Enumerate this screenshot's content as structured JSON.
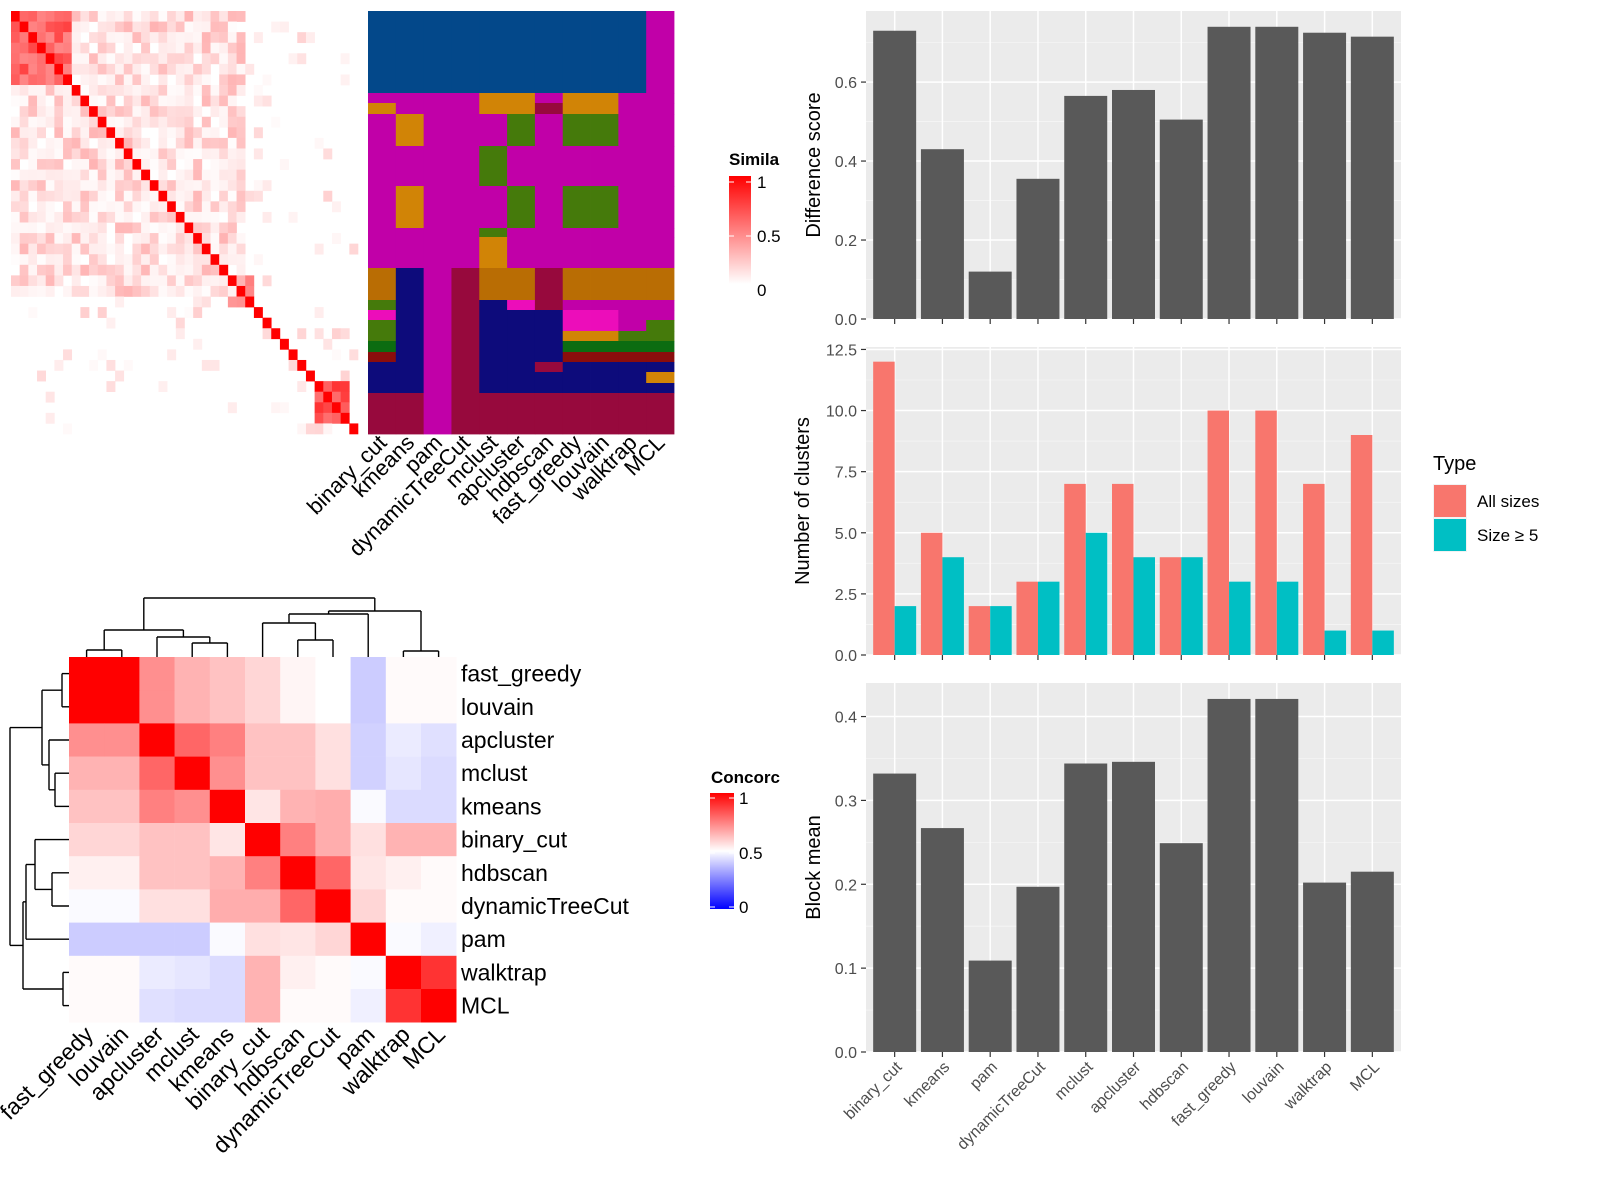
{
  "chart_data": [
    {
      "type": "heatmap",
      "panel": "similarity-heatmap",
      "legend": {
        "title": "Simila",
        "ticks": [
          "1",
          "0.5",
          "0"
        ],
        "range": [
          0,
          1
        ]
      },
      "n": 40,
      "note_values": "diagonal 1, warm block top-left, blocks at bottom-right"
    },
    {
      "type": "heatmap",
      "panel": "cluster-assignment-heatmap",
      "columns": [
        "binary_cut",
        "kmeans",
        "pam",
        "dynamicTreeCut",
        "mclust",
        "apcluster",
        "hdbscan",
        "fast_greedy",
        "louvain",
        "walktrap",
        "MCL"
      ],
      "palette": {
        "blue": "#03488a",
        "magenta": "#c100a8",
        "orange": "#d18406",
        "green": "#457a0b",
        "navy": "#0d0b7b",
        "maroon": "#97093d",
        "brown": "#b96d04",
        "pink": "#ec0dba",
        "darkgreen": "#0c6c11",
        "darkred": "#8a0d0c"
      }
    },
    {
      "type": "heatmap",
      "panel": "concordance-heatmap",
      "rows": [
        "fast_greedy",
        "louvain",
        "apcluster",
        "mclust",
        "kmeans",
        "binary_cut",
        "hdbscan",
        "dynamicTreeCut",
        "pam",
        "walktrap",
        "MCL"
      ],
      "cols": [
        "fast_greedy",
        "louvain",
        "apcluster",
        "mclust",
        "kmeans",
        "binary_cut",
        "hdbscan",
        "dynamicTreeCut",
        "pam",
        "walktrap",
        "MCL"
      ],
      "legend": {
        "title": "Concorc",
        "ticks": [
          "1",
          "0.5",
          "0"
        ],
        "range": [
          0,
          1
        ]
      },
      "values": [
        [
          1.0,
          1.0,
          0.72,
          0.65,
          0.62,
          0.58,
          0.52,
          0.5,
          0.4,
          0.51,
          0.51
        ],
        [
          1.0,
          1.0,
          0.72,
          0.65,
          0.62,
          0.58,
          0.52,
          0.5,
          0.4,
          0.51,
          0.51
        ],
        [
          0.72,
          0.72,
          1.0,
          0.8,
          0.75,
          0.62,
          0.62,
          0.56,
          0.41,
          0.46,
          0.44
        ],
        [
          0.65,
          0.65,
          0.8,
          1.0,
          0.72,
          0.62,
          0.62,
          0.56,
          0.41,
          0.45,
          0.43
        ],
        [
          0.62,
          0.62,
          0.75,
          0.72,
          1.0,
          0.55,
          0.65,
          0.66,
          0.49,
          0.43,
          0.43
        ],
        [
          0.58,
          0.58,
          0.62,
          0.62,
          0.55,
          1.0,
          0.75,
          0.66,
          0.56,
          0.65,
          0.65
        ],
        [
          0.53,
          0.53,
          0.62,
          0.62,
          0.65,
          0.75,
          1.0,
          0.8,
          0.55,
          0.53,
          0.51
        ],
        [
          0.49,
          0.49,
          0.56,
          0.56,
          0.66,
          0.66,
          0.8,
          1.0,
          0.58,
          0.51,
          0.51
        ],
        [
          0.4,
          0.4,
          0.4,
          0.4,
          0.49,
          0.56,
          0.55,
          0.58,
          1.0,
          0.49,
          0.47
        ],
        [
          0.51,
          0.51,
          0.46,
          0.45,
          0.43,
          0.65,
          0.53,
          0.51,
          0.49,
          1.0,
          0.9
        ],
        [
          0.51,
          0.51,
          0.44,
          0.43,
          0.43,
          0.65,
          0.51,
          0.51,
          0.47,
          0.9,
          1.0
        ]
      ]
    },
    {
      "type": "bar",
      "panel": "difference-score",
      "categories": [
        "binary_cut",
        "kmeans",
        "pam",
        "dynamicTreeCut",
        "mclust",
        "apcluster",
        "hdbscan",
        "fast_greedy",
        "louvain",
        "walktrap",
        "MCL"
      ],
      "values": [
        0.73,
        0.43,
        0.12,
        0.355,
        0.565,
        0.58,
        0.505,
        0.74,
        0.74,
        0.725,
        0.715
      ],
      "ylabel": "Difference score",
      "yticks": [
        "0.0",
        "0.2",
        "0.4",
        "0.6"
      ],
      "ylim": [
        0,
        0.78
      ],
      "color": "#595959"
    },
    {
      "type": "bar",
      "panel": "number-of-clusters",
      "categories": [
        "binary_cut",
        "kmeans",
        "pam",
        "dynamicTreeCut",
        "mclust",
        "apcluster",
        "hdbscan",
        "fast_greedy",
        "louvain",
        "walktrap",
        "MCL"
      ],
      "series": [
        {
          "name": "All sizes",
          "color": "#f8766d",
          "values": [
            12,
            5,
            2,
            3,
            7,
            7,
            4,
            10,
            10,
            7,
            9
          ]
        },
        {
          "name": "Size ≥ 5",
          "color": "#00bfc4",
          "values": [
            2,
            4,
            2,
            3,
            5,
            4,
            4,
            3,
            3,
            1,
            1
          ]
        }
      ],
      "ylabel": "Number of clusters",
      "yticks": [
        "0.0",
        "2.5",
        "5.0",
        "7.5",
        "10.0",
        "12.5"
      ],
      "ylim": [
        0,
        12.6
      ],
      "legend": {
        "title": "Type",
        "placement": "right"
      }
    },
    {
      "type": "bar",
      "panel": "block-mean",
      "categories": [
        "binary_cut",
        "kmeans",
        "pam",
        "dynamicTreeCut",
        "mclust",
        "apcluster",
        "hdbscan",
        "fast_greedy",
        "louvain",
        "walktrap",
        "MCL"
      ],
      "values": [
        0.332,
        0.267,
        0.109,
        0.197,
        0.344,
        0.346,
        0.249,
        0.421,
        0.421,
        0.202,
        0.215
      ],
      "ylabel": "Block mean",
      "yticks": [
        "0.0",
        "0.1",
        "0.2",
        "0.3",
        "0.4"
      ],
      "ylim": [
        0,
        0.44
      ],
      "color": "#595959"
    }
  ]
}
